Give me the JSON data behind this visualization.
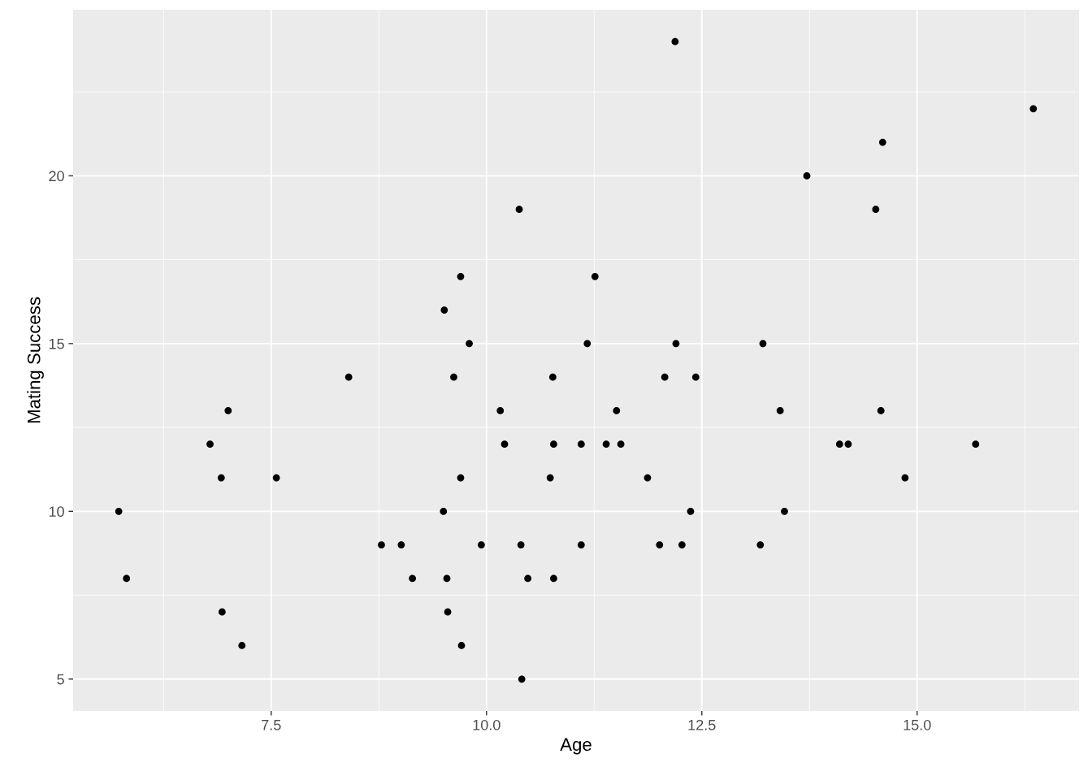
{
  "chart_data": {
    "type": "scatter",
    "xlabel": "Age",
    "ylabel": "Mating Success",
    "x": [
      5.73,
      5.82,
      6.79,
      6.92,
      7.0,
      6.93,
      7.16,
      7.56,
      8.4,
      8.78,
      9.01,
      9.14,
      9.51,
      9.5,
      9.54,
      9.55,
      9.62,
      9.7,
      9.7,
      9.71,
      9.8,
      9.94,
      10.16,
      10.21,
      10.38,
      10.4,
      10.41,
      10.48,
      10.74,
      10.77,
      10.78,
      10.78,
      11.1,
      11.1,
      11.17,
      11.26,
      11.39,
      11.51,
      11.56,
      11.87,
      12.01,
      12.07,
      12.19,
      12.2,
      12.27,
      12.37,
      12.43,
      13.18,
      13.21,
      13.41,
      13.46,
      13.72,
      14.1,
      14.2,
      14.52,
      14.58,
      14.6,
      14.86,
      15.68,
      16.35
    ],
    "values": [
      10,
      8,
      12,
      11,
      13,
      7,
      6,
      11,
      14,
      9,
      9,
      8,
      16,
      10,
      8,
      7,
      14,
      17,
      11,
      6,
      15,
      9,
      13,
      12,
      19,
      9,
      5,
      8,
      11,
      14,
      12,
      8,
      12,
      9,
      15,
      17,
      12,
      13,
      12,
      11,
      9,
      14,
      24,
      15,
      9,
      10,
      14,
      9,
      15,
      13,
      10,
      20,
      12,
      12,
      19,
      13,
      21,
      11,
      12,
      22
    ],
    "color": "#000000",
    "marker": "circle",
    "grid": true,
    "xlim": [
      5.2,
      16.88
    ],
    "ylim": [
      4.05,
      24.95
    ],
    "xticks": [
      {
        "value": 7.5,
        "label": "7.5"
      },
      {
        "value": 10,
        "label": "10.0"
      },
      {
        "value": 12.5,
        "label": "12.5"
      },
      {
        "value": 15,
        "label": "15.0"
      }
    ],
    "yticks": [
      5,
      10,
      15,
      20
    ]
  }
}
